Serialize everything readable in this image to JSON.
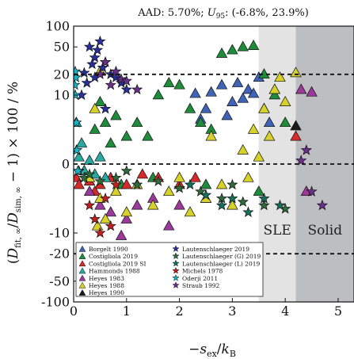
{
  "chart_data": {
    "type": "scatter",
    "title": "AAD: 5.70%; U95: (-6.8%, 23.9%)",
    "title_parts": {
      "prefix": "AAD: 5.70%; ",
      "u": "U",
      "u_sub": "95",
      "suffix": ": (-6.8%, 23.9%)"
    },
    "xlabel": "−s_ex/k_B",
    "xlabel_parts": {
      "minus": "−",
      "s": "s",
      "s_sub": "ex",
      "slash": "/",
      "k": "k",
      "k_sub": "B"
    },
    "ylabel": "(D̃fit,∞/D̃sim,∞ − 1) × 100 / %",
    "ylabel_parts": {
      "open": "(",
      "d1": "D",
      "d1_sub": "fit, ∞",
      "slash": "/",
      "d2": "D",
      "d2_sub": "sim, ∞",
      "rest": " − 1) × 100 / %"
    },
    "x_range": [
      0,
      5.3
    ],
    "y_scale": "symlog",
    "y_linthresh": 10,
    "y_range": [
      -100,
      100
    ],
    "x_ticks": [
      "0",
      "1",
      "2",
      "3",
      "4",
      "5"
    ],
    "x_tick_values": [
      0,
      1,
      2,
      3,
      4,
      5
    ],
    "y_ticks": [
      "100",
      "50",
      "20",
      "10",
      "0",
      "-10",
      "-20",
      "-50",
      "-100"
    ],
    "y_tick_values": [
      100,
      50,
      20,
      10,
      0,
      -10,
      -20,
      -50,
      -100
    ],
    "reference_lines": [
      20,
      0,
      -20
    ],
    "regions": [
      {
        "label": "SLE",
        "x_start": 3.5,
        "x_end": 4.2,
        "color": "#e3e3e3"
      },
      {
        "label": "Solid",
        "x_start": 4.2,
        "x_end": 5.3,
        "color": "#bdbec2"
      }
    ],
    "legend_position": "bottom-left",
    "series": [
      {
        "name": "Borgelt 1990",
        "color": "#3f63b5",
        "marker": "triangle",
        "points": [
          [
            2.3,
            10.5
          ],
          [
            2.5,
            8
          ],
          [
            2.8,
            14
          ],
          [
            3.0,
            9
          ],
          [
            3.1,
            15
          ],
          [
            3.3,
            12
          ],
          [
            3.5,
            18
          ],
          [
            3.6,
            8
          ],
          [
            3.8,
            12
          ],
          [
            2.6,
            11
          ],
          [
            2.9,
            7
          ],
          [
            3.2,
            9.5
          ],
          [
            3.4,
            10.5
          ],
          [
            3.7,
            6
          ],
          [
            2.4,
            6.5
          ]
        ]
      },
      {
        "name": "Costigliola 2019",
        "color": "#1e8c3a",
        "marker": "triangle",
        "points": [
          [
            0.4,
            5
          ],
          [
            0.5,
            9
          ],
          [
            0.6,
            6
          ],
          [
            0.7,
            3
          ],
          [
            0.8,
            7
          ],
          [
            1.0,
            4
          ],
          [
            1.2,
            6
          ],
          [
            1.4,
            4
          ],
          [
            1.6,
            10
          ],
          [
            1.8,
            15
          ],
          [
            2.0,
            14
          ],
          [
            2.2,
            8
          ],
          [
            2.4,
            6
          ],
          [
            2.6,
            5
          ],
          [
            2.8,
            40
          ],
          [
            3.0,
            45
          ],
          [
            3.2,
            50
          ],
          [
            3.4,
            52
          ],
          [
            3.6,
            20
          ],
          [
            3.8,
            10
          ],
          [
            4.0,
            6
          ],
          [
            1.5,
            -2
          ],
          [
            2.5,
            -3
          ],
          [
            3.5,
            -4
          ],
          [
            0.9,
            -3
          ]
        ]
      },
      {
        "name": "Costigliola 2019 SI",
        "color": "#d62a2a",
        "marker": "triangle",
        "points": [
          [
            0.05,
            -2
          ],
          [
            0.1,
            -3
          ],
          [
            0.2,
            -1
          ],
          [
            0.3,
            -2.5
          ],
          [
            0.5,
            -3
          ],
          [
            0.7,
            -2
          ],
          [
            1.0,
            -3
          ],
          [
            1.3,
            -1.5
          ],
          [
            1.6,
            -2
          ],
          [
            2.0,
            -3
          ],
          [
            2.3,
            -2
          ],
          [
            4.2,
            4
          ],
          [
            0.4,
            -4
          ],
          [
            0.8,
            -4
          ]
        ]
      },
      {
        "name": "Hammonds 1988",
        "color": "#2aa9a3",
        "marker": "triangle",
        "points": [
          [
            0.1,
            1
          ],
          [
            0.2,
            -1
          ],
          [
            0.3,
            0.5
          ],
          [
            0.4,
            -1.5
          ],
          [
            0.5,
            1
          ],
          [
            0.6,
            -2
          ],
          [
            0.05,
            6
          ],
          [
            0.15,
            3
          ]
        ]
      },
      {
        "name": "Heyes 1983",
        "color": "#9c3a9c",
        "marker": "triangle",
        "points": [
          [
            0.3,
            -4
          ],
          [
            0.5,
            -6
          ],
          [
            0.7,
            -7
          ],
          [
            1.0,
            -8
          ],
          [
            1.2,
            -6
          ],
          [
            1.5,
            -5
          ],
          [
            1.8,
            -9
          ],
          [
            2.0,
            -6
          ],
          [
            2.5,
            -5
          ],
          [
            3.0,
            -6
          ],
          [
            4.3,
            12
          ],
          [
            4.5,
            11
          ],
          [
            4.4,
            -4
          ],
          [
            0.9,
            -11
          ]
        ]
      },
      {
        "name": "Heyes 1988",
        "color": "#d7d12a",
        "marker": "triangle",
        "points": [
          [
            0.3,
            -2
          ],
          [
            0.5,
            -5
          ],
          [
            0.6,
            -8
          ],
          [
            0.8,
            -4
          ],
          [
            1.0,
            -7
          ],
          [
            1.2,
            -3
          ],
          [
            1.5,
            -6
          ],
          [
            1.8,
            -4
          ],
          [
            2.0,
            -2
          ],
          [
            2.2,
            -7
          ],
          [
            2.5,
            -5
          ],
          [
            2.8,
            -3
          ],
          [
            3.0,
            -6
          ],
          [
            3.2,
            2
          ],
          [
            3.4,
            5
          ],
          [
            3.6,
            8
          ],
          [
            3.8,
            12
          ],
          [
            3.9,
            18
          ],
          [
            4.0,
            9
          ],
          [
            3.7,
            4
          ],
          [
            3.5,
            1
          ],
          [
            3.3,
            -2
          ],
          [
            0.4,
            8
          ],
          [
            0.5,
            22
          ],
          [
            2.6,
            4
          ],
          [
            4.2,
            21
          ],
          [
            0.45,
            -9
          ]
        ]
      },
      {
        "name": "Heyes 1990",
        "color": "#1a1a1a",
        "marker": "triangle",
        "points": [
          [
            4.2,
            5.5
          ]
        ]
      },
      {
        "name": "Lautenschlaeger 2019",
        "color": "#2a2f9c",
        "marker": "star",
        "points": [
          [
            0.3,
            50
          ],
          [
            0.4,
            35
          ],
          [
            0.5,
            60
          ],
          [
            0.45,
            45
          ],
          [
            0.35,
            28
          ],
          [
            0.2,
            21
          ],
          [
            0.25,
            15
          ],
          [
            0.15,
            10
          ],
          [
            0.6,
            30
          ],
          [
            0.7,
            20
          ],
          [
            0.8,
            18
          ],
          [
            0.9,
            15
          ],
          [
            1.0,
            12
          ],
          [
            0.55,
            25
          ],
          [
            0.4,
            18
          ],
          [
            0.6,
            8
          ]
        ]
      },
      {
        "name": "Lautenschlaeger (G) 2019",
        "color": "#2f6b3a",
        "marker": "star",
        "points": [
          [
            0.05,
            2
          ],
          [
            0.1,
            -1
          ],
          [
            0.2,
            -2
          ],
          [
            0.3,
            -1.5
          ],
          [
            0.5,
            -2.5
          ],
          [
            0.8,
            -2
          ],
          [
            1.2,
            -3
          ],
          [
            1.6,
            -2.5
          ],
          [
            2.0,
            -3.5
          ],
          [
            2.4,
            -4
          ],
          [
            2.8,
            -5
          ],
          [
            3.2,
            -5.5
          ],
          [
            3.6,
            -6
          ],
          [
            4.0,
            -6.5
          ],
          [
            1.0,
            -1
          ],
          [
            3.0,
            -3
          ]
        ]
      },
      {
        "name": "Lautenschlaeger (L) 2019",
        "color": "#14705a",
        "marker": "star",
        "points": [
          [
            2.5,
            -4.5
          ],
          [
            2.8,
            -6
          ],
          [
            3.0,
            -5
          ],
          [
            3.3,
            -7
          ],
          [
            3.6,
            -5
          ],
          [
            3.9,
            -6
          ],
          [
            2.2,
            -3
          ]
        ]
      },
      {
        "name": "Michels 1978",
        "color": "#c21f1f",
        "marker": "star",
        "points": [
          [
            0.4,
            -8
          ],
          [
            0.6,
            -5
          ],
          [
            0.8,
            -3
          ],
          [
            0.5,
            -10
          ],
          [
            0.3,
            -6
          ],
          [
            0.7,
            -9
          ]
        ]
      },
      {
        "name": "Oderji 2011",
        "color": "#17b3c4",
        "marker": "star",
        "points": [
          [
            0.02,
            14
          ],
          [
            0.03,
            10
          ],
          [
            0.05,
            6
          ],
          [
            0.04,
            18
          ],
          [
            0.06,
            2
          ],
          [
            0.08,
            -1
          ],
          [
            0.03,
            22
          ]
        ]
      },
      {
        "name": "Straub 1992",
        "color": "#6a2f8a",
        "marker": "star",
        "points": [
          [
            0.6,
            30
          ],
          [
            0.8,
            22
          ],
          [
            0.9,
            17
          ],
          [
            1.0,
            16
          ],
          [
            1.2,
            12
          ],
          [
            0.5,
            20
          ],
          [
            4.5,
            -4
          ],
          [
            4.7,
            -6
          ],
          [
            4.4,
            2
          ],
          [
            4.3,
            0.5
          ],
          [
            0.7,
            14
          ]
        ]
      }
    ]
  }
}
